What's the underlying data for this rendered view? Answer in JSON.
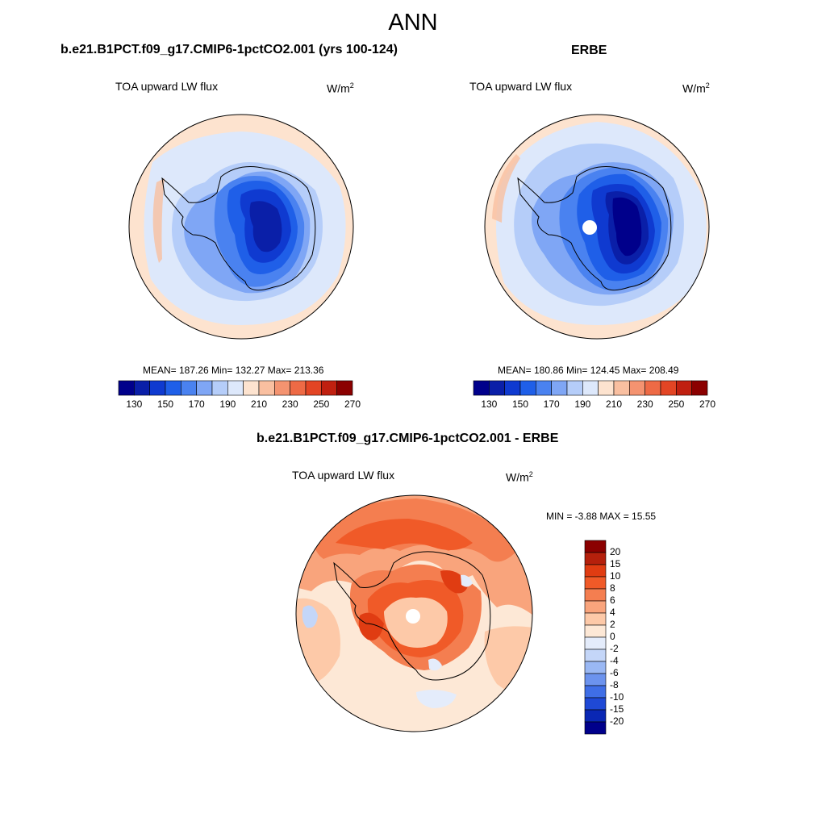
{
  "page": {
    "title": "ANN"
  },
  "panels": {
    "model": {
      "title": "b.e21.B1PCT.f09_g17.CMIP6-1pctCO2.001 (yrs 100-124)",
      "variable": "TOA upward LW flux",
      "units": "W/m",
      "units_sup": "2",
      "stats": "MEAN= 187.26  Min= 132.27  Max= 213.36"
    },
    "obs": {
      "title": "ERBE",
      "variable": "TOA upward LW flux",
      "units": "W/m",
      "units_sup": "2",
      "stats": "MEAN= 180.86  Min= 124.45  Max= 208.49"
    },
    "diff": {
      "title": "b.e21.B1PCT.f09_g17.CMIP6-1pctCO2.001 - ERBE",
      "variable": "TOA upward LW flux",
      "units": "W/m",
      "units_sup": "2",
      "stats": "MIN =  -3.88 MAX =  15.55"
    }
  },
  "colorbars": {
    "abs": {
      "tick_labels": [
        "130",
        "150",
        "170",
        "190",
        "210",
        "230",
        "250",
        "270"
      ],
      "colors": [
        "#00008b",
        "#0a1fa8",
        "#0f3ad0",
        "#1f5fe8",
        "#4a82f0",
        "#7fa6f5",
        "#b5cdf9",
        "#dde8fb",
        "#fde3cf",
        "#f9bfa0",
        "#f49370",
        "#ee6a45",
        "#e34524",
        "#c02010",
        "#8b0000"
      ]
    },
    "diff": {
      "tick_labels": [
        "20",
        "15",
        "10",
        "8",
        "6",
        "4",
        "2",
        "0",
        "-2",
        "-4",
        "-6",
        "-8",
        "-10",
        "-15",
        "-20"
      ],
      "colors": [
        "#8b0000",
        "#b5200c",
        "#e03c12",
        "#f05a28",
        "#f47e50",
        "#f9a47c",
        "#fdc9a8",
        "#fde8d6",
        "#e4ecfb",
        "#c4d6f8",
        "#9ab8f4",
        "#6c93ee",
        "#3f6ee6",
        "#1f49d6",
        "#0a27b4",
        "#00008b"
      ]
    }
  }
}
